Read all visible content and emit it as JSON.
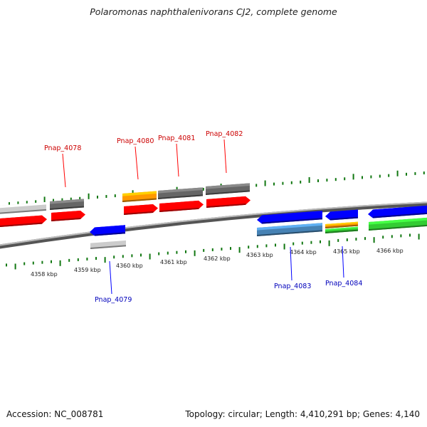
{
  "title": "Polaromonas naphthalenivorans CJ2, complete genome",
  "footer": {
    "accession": "Accession: NC_008781",
    "stats": "Topology: circular; Length: 4,410,291 bp; Genes: 4,140"
  },
  "colors": {
    "forward_cds": "#ff0000",
    "reverse_cds": "#0000ff",
    "gene_gray": "#cccccc",
    "gene_dark": "#666666",
    "orange": "#ff9900",
    "steelblue": "#4682b4",
    "green": "#33cc33",
    "tick": "#117711",
    "backbone": "#888888",
    "forward_label": "#cc0000",
    "reverse_label": "#0000bb"
  },
  "scale": {
    "unit": "kbp",
    "labels": [
      "4358 kbp",
      "4359 kbp",
      "4360 kbp",
      "4361 kbp",
      "4362 kbp",
      "4363 kbp",
      "4364 kbp",
      "4365 kbp",
      "4366 kbp"
    ]
  },
  "gene_labels": {
    "forward": [
      "Pnap_4078",
      "Pnap_4080",
      "Pnap_4081",
      "Pnap_4082"
    ],
    "reverse": [
      "Pnap_4079",
      "Pnap_4083",
      "Pnap_4084"
    ]
  }
}
